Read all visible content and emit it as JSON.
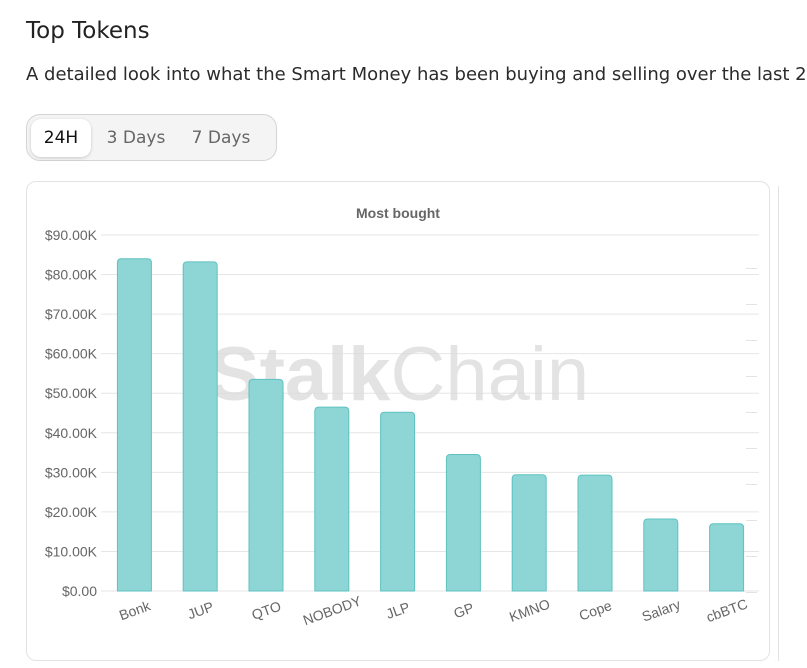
{
  "header": {
    "title": "Top Tokens",
    "subtitle": "A detailed look into what the Smart Money has been buying and selling over the last 2"
  },
  "tabs": [
    {
      "label": "24H",
      "active": true
    },
    {
      "label": "3 Days",
      "active": false
    },
    {
      "label": "7 Days",
      "active": false
    }
  ],
  "watermark": {
    "part1": "Stalk",
    "part2": "Chain"
  },
  "colors": {
    "bar_fill": "#8dd6d5",
    "bar_stroke": "#5fc2c0",
    "grid": "#e6e6e6"
  },
  "chart_data": {
    "type": "bar",
    "title": "Most bought",
    "categories": [
      "Bonk",
      "JUP",
      "QTO",
      "NOBODY",
      "JLP",
      "GP",
      "KMNO",
      "Cope",
      "Salary",
      "cbBTC"
    ],
    "values": [
      84000,
      83200,
      53500,
      46500,
      45200,
      34500,
      29400,
      29300,
      18200,
      17000
    ],
    "ylim": [
      0,
      90000
    ],
    "yticks": [
      0,
      10000,
      20000,
      30000,
      40000,
      50000,
      60000,
      70000,
      80000,
      90000
    ],
    "ytick_labels": [
      "$0.00",
      "$10.00K",
      "$20.00K",
      "$30.00K",
      "$40.00K",
      "$50.00K",
      "$60.00K",
      "$70.00K",
      "$80.00K",
      "$90.00K"
    ],
    "xlabel": "",
    "ylabel": "",
    "grid": true,
    "legend": "none"
  }
}
